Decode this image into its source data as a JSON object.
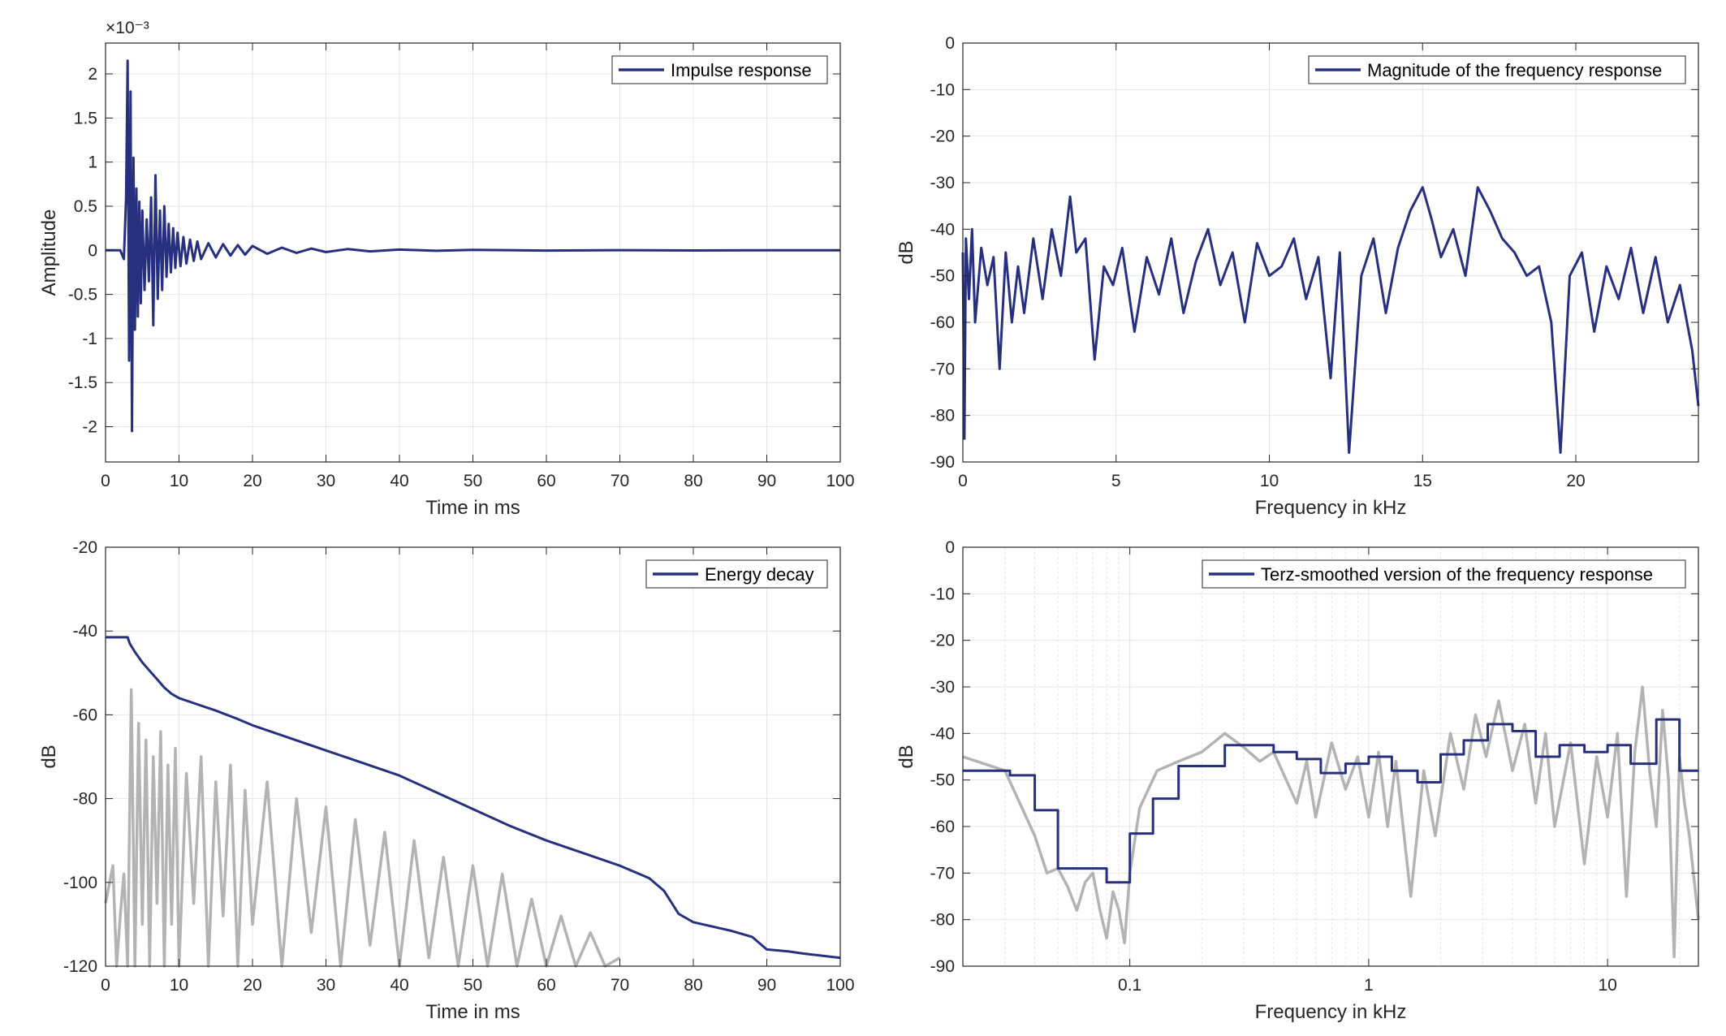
{
  "colors": {
    "series": "#27307e",
    "gray": "#b3b3b3",
    "grid": "#e4e4e4",
    "axis": "#262626"
  },
  "chart_data": [
    {
      "id": "impulse",
      "type": "line",
      "xlabel": "Time in ms",
      "ylabel": "Amplitude",
      "y_exponent_label": "×10⁻³",
      "xlim": [
        0,
        100
      ],
      "ylim": [
        -2.4,
        2.35
      ],
      "xticks": [
        0,
        10,
        20,
        30,
        40,
        50,
        60,
        70,
        80,
        90,
        100
      ],
      "xtick_labels": [
        "0",
        "10",
        "20",
        "30",
        "40",
        "50",
        "60",
        "70",
        "80",
        "90",
        "100"
      ],
      "yticks": [
        -2,
        -1.5,
        -1,
        -0.5,
        0,
        0.5,
        1,
        1.5,
        2
      ],
      "ytick_labels": [
        "-2",
        "-1.5",
        "-1",
        "-0.5",
        "0",
        "0.5",
        "1",
        "1.5",
        "2"
      ],
      "grid": true,
      "legend_position": "top-right",
      "series": [
        {
          "name": "Impulse response",
          "color": "#27307e",
          "x": [
            0,
            2,
            2.5,
            2.8,
            3.0,
            3.2,
            3.4,
            3.6,
            3.8,
            4.0,
            4.2,
            4.4,
            4.6,
            4.8,
            5.0,
            5.3,
            5.6,
            5.9,
            6.2,
            6.5,
            6.8,
            7.1,
            7.4,
            7.7,
            8.0,
            8.3,
            8.6,
            8.9,
            9.2,
            9.5,
            9.8,
            10.2,
            10.6,
            11,
            11.5,
            12,
            12.5,
            13,
            14,
            15,
            16,
            17,
            18,
            19,
            20,
            22,
            24,
            26,
            28,
            30,
            33,
            36,
            40,
            45,
            50,
            60,
            70,
            80,
            90,
            100
          ],
          "values": [
            0,
            0,
            -0.1,
            0.6,
            2.15,
            -1.25,
            1.8,
            -2.05,
            1.05,
            -0.9,
            0.7,
            -0.75,
            0.55,
            -0.6,
            0.45,
            -0.45,
            0.35,
            -0.35,
            0.6,
            -0.85,
            0.85,
            -0.55,
            0.45,
            -0.45,
            0.5,
            -0.3,
            0.3,
            -0.25,
            0.25,
            -0.2,
            0.2,
            -0.18,
            0.15,
            -0.15,
            0.12,
            -0.12,
            0.1,
            -0.1,
            0.08,
            -0.08,
            0.07,
            -0.06,
            0.06,
            -0.05,
            0.05,
            -0.04,
            0.03,
            -0.03,
            0.02,
            -0.02,
            0.015,
            -0.012,
            0.008,
            -0.006,
            0.004,
            -0.003,
            0.002,
            -0.002,
            0.001,
            0
          ]
        }
      ]
    },
    {
      "id": "magnitude",
      "type": "line",
      "xlabel": "Frequency in kHz",
      "ylabel": "dB",
      "xlim": [
        0,
        24
      ],
      "ylim": [
        -90,
        0
      ],
      "xticks": [
        0,
        5,
        10,
        15,
        20
      ],
      "xtick_labels": [
        "0",
        "5",
        "10",
        "15",
        "20"
      ],
      "yticks": [
        0,
        -10,
        -20,
        -30,
        -40,
        -50,
        -60,
        -70,
        -80,
        -90
      ],
      "ytick_labels": [
        "0",
        "-10",
        "-20",
        "-30",
        "-40",
        "-50",
        "-60",
        "-70",
        "-80",
        "-90"
      ],
      "grid": true,
      "legend_position": "top-right",
      "series": [
        {
          "name": "Magnitude of the frequency response",
          "color": "#27307e",
          "x": [
            0,
            0.05,
            0.1,
            0.2,
            0.3,
            0.4,
            0.6,
            0.8,
            1.0,
            1.2,
            1.4,
            1.6,
            1.8,
            2.0,
            2.3,
            2.6,
            2.9,
            3.2,
            3.5,
            3.7,
            4.0,
            4.3,
            4.6,
            4.9,
            5.2,
            5.6,
            6.0,
            6.4,
            6.8,
            7.2,
            7.6,
            8.0,
            8.4,
            8.8,
            9.2,
            9.6,
            10.0,
            10.4,
            10.8,
            11.2,
            11.6,
            12.0,
            12.3,
            12.6,
            13.0,
            13.4,
            13.8,
            14.2,
            14.6,
            15.0,
            15.3,
            15.6,
            16.0,
            16.4,
            16.8,
            17.2,
            17.6,
            18.0,
            18.4,
            18.8,
            19.2,
            19.5,
            19.8,
            20.2,
            20.6,
            21.0,
            21.4,
            21.8,
            22.2,
            22.6,
            23.0,
            23.4,
            23.8,
            24.0
          ],
          "values": [
            -45,
            -85,
            -42,
            -55,
            -40,
            -60,
            -44,
            -52,
            -46,
            -70,
            -45,
            -60,
            -48,
            -58,
            -42,
            -55,
            -40,
            -50,
            -33,
            -45,
            -42,
            -68,
            -48,
            -52,
            -44,
            -62,
            -46,
            -54,
            -42,
            -58,
            -47,
            -40,
            -52,
            -45,
            -60,
            -43,
            -50,
            -48,
            -42,
            -55,
            -46,
            -72,
            -45,
            -88,
            -50,
            -42,
            -58,
            -44,
            -36,
            -31,
            -38,
            -46,
            -40,
            -50,
            -31,
            -36,
            -42,
            -45,
            -50,
            -48,
            -60,
            -88,
            -50,
            -45,
            -62,
            -48,
            -55,
            -44,
            -58,
            -46,
            -60,
            -52,
            -66,
            -78
          ]
        }
      ]
    },
    {
      "id": "energy",
      "type": "line",
      "xlabel": "Time in ms",
      "ylabel": "dB",
      "xlim": [
        0,
        100
      ],
      "ylim": [
        -120,
        -20
      ],
      "xticks": [
        0,
        10,
        20,
        30,
        40,
        50,
        60,
        70,
        80,
        90,
        100
      ],
      "xtick_labels": [
        "0",
        "10",
        "20",
        "30",
        "40",
        "50",
        "60",
        "70",
        "80",
        "90",
        "100"
      ],
      "yticks": [
        -20,
        -40,
        -60,
        -80,
        -100,
        -120
      ],
      "ytick_labels": [
        "-20",
        "-40",
        "-60",
        "-80",
        "-100",
        "-120"
      ],
      "grid": true,
      "legend_position": "top-right",
      "series": [
        {
          "name": "Energy decay",
          "color": "#27307e",
          "x": [
            0,
            3,
            3.3,
            4,
            5,
            6,
            7,
            8,
            9,
            10,
            12,
            15,
            18,
            20,
            25,
            30,
            35,
            40,
            45,
            50,
            55,
            60,
            65,
            70,
            74,
            76,
            78,
            80,
            85,
            88,
            90,
            93,
            95,
            100
          ],
          "values": [
            -41.5,
            -41.5,
            -43,
            -45,
            -47.5,
            -49.5,
            -51.5,
            -53.5,
            -55,
            -56,
            -57.2,
            -59,
            -61,
            -62.5,
            -65.5,
            -68.5,
            -71.5,
            -74.5,
            -78.5,
            -82.5,
            -86.5,
            -90,
            -93,
            -96,
            -99,
            -102,
            -107.5,
            -109.5,
            -111.5,
            -113,
            -116,
            -116.5,
            -117,
            -118
          ]
        },
        {
          "name": "",
          "color": "#b3b3b3",
          "x": [
            0,
            1,
            1.5,
            2,
            2.5,
            3,
            3.5,
            4,
            4.5,
            5,
            5.5,
            6,
            6.5,
            7,
            7.5,
            8,
            8.5,
            9,
            9.5,
            10,
            11,
            12,
            13,
            14,
            15,
            16,
            17,
            18,
            19,
            20,
            22,
            24,
            26,
            28,
            30,
            32,
            34,
            36,
            38,
            40,
            42,
            44,
            46,
            48,
            50,
            52,
            54,
            56,
            58,
            60,
            62,
            64,
            66,
            68,
            70
          ],
          "values": [
            -105,
            -96,
            -120,
            -108,
            -98,
            -120,
            -54,
            -120,
            -62,
            -110,
            -66,
            -120,
            -70,
            -105,
            -64,
            -120,
            -72,
            -110,
            -68,
            -120,
            -74,
            -105,
            -70,
            -120,
            -76,
            -108,
            -72,
            -120,
            -78,
            -110,
            -76,
            -120,
            -80,
            -112,
            -82,
            -120,
            -85,
            -115,
            -88,
            -120,
            -90,
            -118,
            -94,
            -120,
            -96,
            -120,
            -98,
            -120,
            -104,
            -120,
            -108,
            -120,
            -112,
            -120,
            -118
          ]
        }
      ]
    },
    {
      "id": "terz",
      "type": "line",
      "xlabel": "Frequency in kHz",
      "ylabel": "dB",
      "x_scale": "log",
      "xlim": [
        0.02,
        24
      ],
      "ylim": [
        -90,
        0
      ],
      "xticks": [
        0.1,
        1,
        10
      ],
      "xtick_labels": [
        "0.1",
        "1",
        "10"
      ],
      "yticks": [
        0,
        -10,
        -20,
        -30,
        -40,
        -50,
        -60,
        -70,
        -80,
        -90
      ],
      "ytick_labels": [
        "0",
        "-10",
        "-20",
        "-30",
        "-40",
        "-50",
        "-60",
        "-70",
        "-80",
        "-90"
      ],
      "grid": true,
      "legend_position": "top-right",
      "series": [
        {
          "name": "Terz-smoothed version of the frequency response",
          "color": "#27307e",
          "x": [
            0.02,
            0.025,
            0.0315,
            0.04,
            0.05,
            0.063,
            0.08,
            0.1,
            0.125,
            0.16,
            0.2,
            0.25,
            0.315,
            0.4,
            0.5,
            0.63,
            0.8,
            1.0,
            1.25,
            1.6,
            2.0,
            2.5,
            3.15,
            4.0,
            5.0,
            6.3,
            8.0,
            10.0,
            12.5,
            16.0,
            20.0,
            24.0
          ],
          "values": [
            -48,
            -48,
            -49,
            -56.5,
            -69,
            -69,
            -72,
            -61.5,
            -54,
            -47,
            -47,
            -42.5,
            -42.5,
            -44,
            -45.5,
            -48.5,
            -46.5,
            -45,
            -48,
            -50.5,
            -44.5,
            -41.5,
            -38,
            -39.5,
            -45,
            -42.5,
            -44,
            -42.5,
            -46.5,
            -37,
            -48,
            -48
          ]
        },
        {
          "name": "",
          "color": "#b3b3b3",
          "x": [
            0.02,
            0.03,
            0.04,
            0.045,
            0.05,
            0.055,
            0.06,
            0.065,
            0.07,
            0.075,
            0.08,
            0.085,
            0.09,
            0.095,
            0.1,
            0.11,
            0.13,
            0.16,
            0.2,
            0.25,
            0.3,
            0.35,
            0.4,
            0.5,
            0.55,
            0.6,
            0.7,
            0.8,
            0.9,
            1.0,
            1.1,
            1.2,
            1.3,
            1.5,
            1.7,
            1.9,
            2.2,
            2.5,
            2.8,
            3.1,
            3.5,
            4.0,
            4.5,
            5.0,
            5.5,
            6.0,
            7.0,
            8.0,
            9.0,
            10.0,
            11.0,
            12.0,
            13.0,
            14.0,
            15.0,
            16.0,
            17.0,
            18.0,
            19.0,
            20.0,
            21.0,
            22.0,
            24.0
          ],
          "values": [
            -45,
            -48,
            -62,
            -70,
            -69,
            -73,
            -78,
            -72,
            -70,
            -78,
            -84,
            -74,
            -78,
            -85,
            -70,
            -56,
            -48,
            -46,
            -44,
            -40,
            -43,
            -46,
            -44,
            -55,
            -46,
            -58,
            -42,
            -52,
            -45,
            -58,
            -44,
            -60,
            -46,
            -75,
            -48,
            -62,
            -40,
            -52,
            -36,
            -45,
            -33,
            -48,
            -38,
            -55,
            -40,
            -60,
            -42,
            -68,
            -45,
            -58,
            -40,
            -75,
            -44,
            -30,
            -48,
            -60,
            -35,
            -50,
            -88,
            -45,
            -55,
            -62,
            -80
          ]
        }
      ]
    }
  ]
}
